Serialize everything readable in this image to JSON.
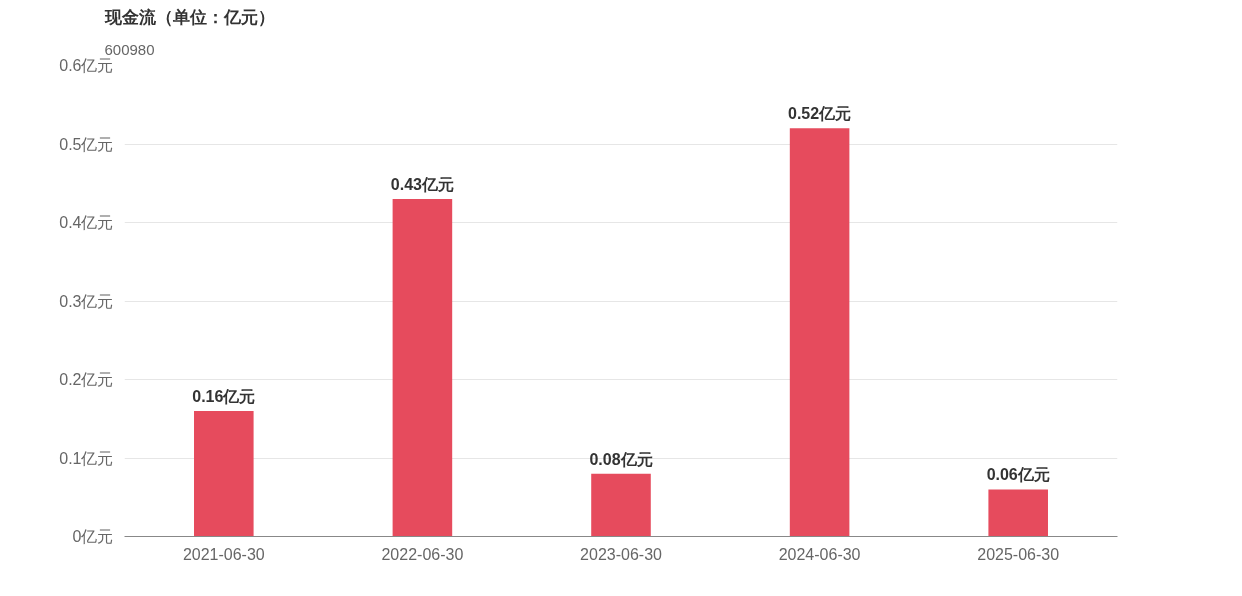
{
  "chart_data": {
    "type": "bar",
    "title": "现金流（单位：亿元）",
    "subtitle": "600980",
    "categories": [
      "2021-06-30",
      "2022-06-30",
      "2023-06-30",
      "2024-06-30",
      "2025-06-30"
    ],
    "values": [
      0.16,
      0.43,
      0.08,
      0.52,
      0.06
    ],
    "value_labels": [
      "0.16亿元",
      "0.43亿元",
      "0.08亿元",
      "0.52亿元",
      "0.06亿元"
    ],
    "color": "#e64b5d",
    "ylim": [
      0,
      0.6
    ],
    "yticks": [
      {
        "value": 0,
        "label": "0亿元"
      },
      {
        "value": 0.1,
        "label": "0.1亿元"
      },
      {
        "value": 0.2,
        "label": "0.2亿元"
      },
      {
        "value": 0.3,
        "label": "0.3亿元"
      },
      {
        "value": 0.4,
        "label": "0.4亿元"
      },
      {
        "value": 0.5,
        "label": "0.5亿元"
      },
      {
        "value": 0.6,
        "label": "0.6亿元"
      }
    ],
    "grid": "y"
  }
}
